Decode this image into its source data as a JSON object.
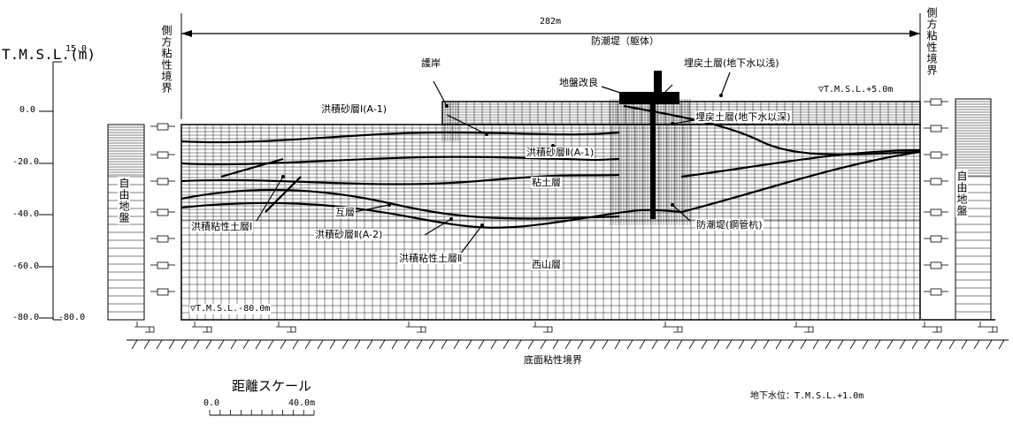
{
  "axis": {
    "title": "T.M.S.L.(m)",
    "ticks": [
      "15.0",
      "0.0",
      "-20.0",
      "-40.0",
      "-60.0",
      "-80.0"
    ],
    "bottom_label": "-80.0"
  },
  "dimension": "282m",
  "boundaries": {
    "side_left": "側方粘性境界",
    "side_right": "側方粘性境界",
    "bottom": "底面粘性境界"
  },
  "free_ground": {
    "left": "自由地盤",
    "right": "自由地盤"
  },
  "labels": [
    "防潮堤（躯体）",
    "護岸",
    "地盤改良",
    "埋戻土層(地下水以浅)",
    "洪積砂層Ⅰ(A-1)",
    "埋戻土層(地下水以深)",
    "洪積砂層Ⅱ(A-1)",
    "粘土層",
    "互層",
    "洪積粘性土層Ⅰ",
    "洪積砂層Ⅱ(A-2)",
    "防潮堤(鋼管杭)",
    "洪積粘性土層Ⅱ",
    "西山層"
  ],
  "levels": {
    "top": "▽T.M.S.L.+5.0m",
    "bottom": "▽T.M.S.L.-80.0m"
  },
  "groundwater": "地下水位：T.M.S.L.+1.0m",
  "scale": {
    "title": "距離スケール",
    "start": "0.0",
    "end": "40.0m"
  }
}
